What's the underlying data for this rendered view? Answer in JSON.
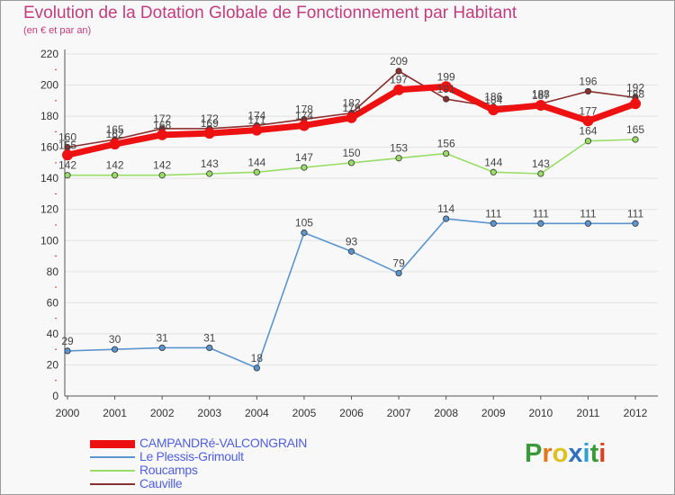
{
  "chart_data": {
    "type": "line",
    "title": "Evolution de la Dotation Globale de Fonctionnement par Habitant",
    "subtitle": "(en € et par an)",
    "x": [
      "2000",
      "2001",
      "2002",
      "2003",
      "2004",
      "2005",
      "2006",
      "2007",
      "2008",
      "2009",
      "2010",
      "2011",
      "2012"
    ],
    "yticks": [
      0,
      20,
      40,
      60,
      80,
      100,
      120,
      140,
      160,
      180,
      200,
      220
    ],
    "ylim": [
      0,
      220
    ],
    "series": [
      {
        "name": "Le Plessis-Grimoult",
        "color": "#5b95cf",
        "values": [
          29,
          30,
          31,
          31,
          18,
          105,
          93,
          79,
          114,
          111,
          111,
          111,
          111
        ]
      },
      {
        "name": "Roucamps",
        "color": "#99dd66",
        "values": [
          142,
          142,
          142,
          143,
          144,
          147,
          150,
          153,
          156,
          144,
          143,
          164,
          165
        ]
      },
      {
        "name": "Cauville",
        "color": "#8b2e2e",
        "values": [
          160,
          165,
          172,
          172,
          174,
          178,
          182,
          209,
          191,
          186,
          188,
          196,
          192
        ]
      },
      {
        "name": "CAMPANDRé-VALCONGRAIN",
        "color": "#ee1111",
        "values": [
          155,
          162,
          168,
          169,
          171,
          174,
          179,
          197,
          199,
          184,
          187,
          177,
          188
        ]
      }
    ]
  },
  "legend": [
    {
      "label": "CAMPANDRé-VALCONGRAIN",
      "color": "#ee1111"
    },
    {
      "label": "Le Plessis-Grimoult",
      "color": "#5b95cf"
    },
    {
      "label": "Roucamps",
      "color": "#99dd66"
    },
    {
      "label": "Cauville",
      "color": "#8b2e2e"
    }
  ],
  "logo": {
    "text": "Proxiti",
    "letters": [
      "P",
      "r",
      "o",
      "x",
      "i",
      "t",
      "i"
    ],
    "colors": [
      "#3a9a3a",
      "#e07820",
      "#e0c020",
      "#3070c0",
      "#30a0d0",
      "#3a9a3a",
      "#e04020"
    ]
  }
}
